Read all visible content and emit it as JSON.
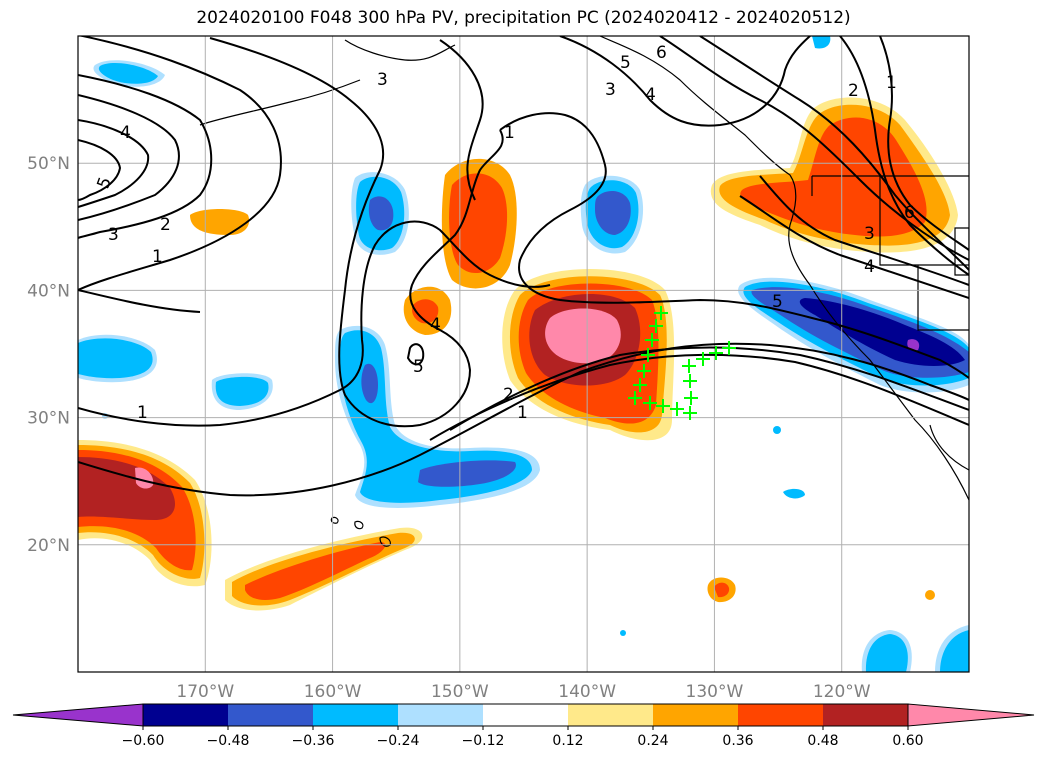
{
  "title": "2024020100 F048 300 hPa PV, precipitation PC (2024020412 - 2024020512)",
  "map": {
    "lon_range": [
      -180,
      -110
    ],
    "lat_range": [
      10,
      60
    ],
    "lon_ticks": [
      {
        "lon": -170,
        "label": "170°W"
      },
      {
        "lon": -160,
        "label": "160°W"
      },
      {
        "lon": -150,
        "label": "150°W"
      },
      {
        "lon": -140,
        "label": "140°W"
      },
      {
        "lon": -130,
        "label": "130°W"
      },
      {
        "lon": -120,
        "label": "120°W"
      }
    ],
    "lat_ticks": [
      {
        "lat": 20,
        "label": "20°N"
      },
      {
        "lat": 30,
        "label": "30°N"
      },
      {
        "lat": 40,
        "label": "40°N"
      },
      {
        "lat": 50,
        "label": "50°N"
      }
    ],
    "gridlines": true,
    "pv_contour_labels": [
      "1",
      "2",
      "3",
      "4",
      "5",
      "6"
    ],
    "marker_color": "#00ff00",
    "marker_symbol": "+"
  },
  "colorbar": {
    "colors": [
      "#9933cc",
      "#000090",
      "#3358cc",
      "#00bbff",
      "#aee0ff",
      "#ffffff",
      "#ffe98a",
      "#ffa500",
      "#ff4500",
      "#b22222",
      "#ff88aa"
    ],
    "tick_labels": [
      "−0.60",
      "−0.48",
      "−0.36",
      "−0.24",
      "−0.12",
      "0.12",
      "0.24",
      "0.36",
      "0.48",
      "0.60"
    ]
  }
}
